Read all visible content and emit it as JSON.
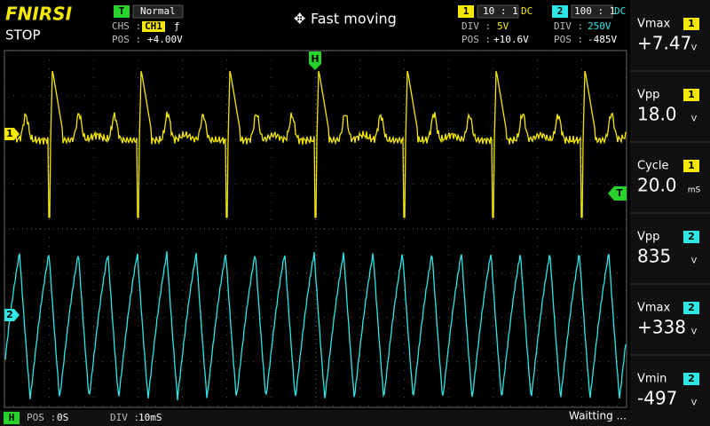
{
  "header": {
    "brand": "FNIRSI",
    "status": "STOP",
    "trigger": {
      "badge": "T",
      "mode": "Normal",
      "chs_label": "CHS :",
      "chs": "CH1",
      "edge": "ƒ",
      "pos_label": "POS :",
      "pos": "+4.00V"
    },
    "center": "Fast moving",
    "ch1": {
      "badge": "1",
      "probe": "10 : 1",
      "coupling": "DC",
      "div_label": "DIV :",
      "div": "5V",
      "pos_label": "POS :",
      "pos": "+10.6V"
    },
    "ch2": {
      "badge": "2",
      "probe": "100 : 1",
      "coupling": "DC",
      "div_label": "DIV :",
      "div": "250V",
      "pos_label": "POS :",
      "pos": "-485V"
    }
  },
  "markers": {
    "h": "H",
    "t": "T",
    "ch1": "1",
    "ch2": "2"
  },
  "measurements": [
    {
      "label": "Vmax",
      "ch": "1",
      "value": "+7.47",
      "unit": "V"
    },
    {
      "label": "Vpp",
      "ch": "1",
      "value": "18.0",
      "unit": "V"
    },
    {
      "label": "Cycle",
      "ch": "1",
      "value": "20.0",
      "unit": "mS"
    },
    {
      "label": "Vpp",
      "ch": "2",
      "value": "835",
      "unit": "V"
    },
    {
      "label": "Vmax",
      "ch": "2",
      "value": "+338",
      "unit": "V"
    },
    {
      "label": "Vmin",
      "ch": "2",
      "value": "-497",
      "unit": "V"
    }
  ],
  "footer": {
    "badge": "H",
    "pos_label": "POS :",
    "pos": "0S",
    "div_label": "DIV :",
    "div": "10mS",
    "status": "Waitting ..."
  }
}
